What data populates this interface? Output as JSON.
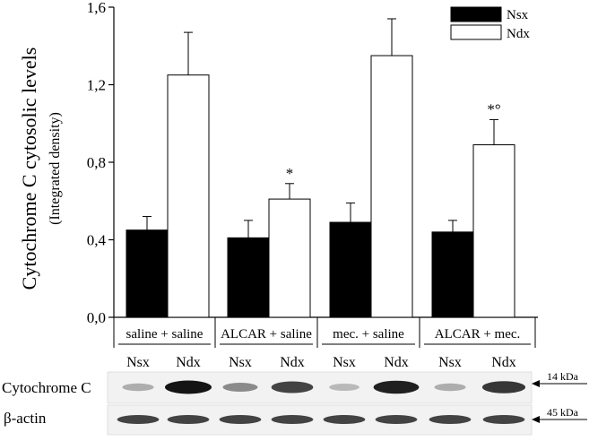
{
  "chart_data": {
    "type": "bar",
    "ylabel": "Cytochrome C cytosolic levels",
    "ylabel_sub": "(Integrated density)",
    "ylim": [
      0,
      1.6
    ],
    "yticks": [
      "0,0",
      "0,4",
      "0,8",
      "1,2",
      "1,6"
    ],
    "ytick_values": [
      0,
      0.4,
      0.8,
      1.2,
      1.6
    ],
    "categories": [
      "saline + saline",
      "ALCAR + saline",
      "mec. + saline",
      "ALCAR + mec."
    ],
    "series": [
      {
        "name": "Nsx",
        "color": "#000000",
        "values": [
          0.45,
          0.41,
          0.49,
          0.44
        ],
        "errors": [
          0.07,
          0.09,
          0.1,
          0.06
        ],
        "annotations": [
          "",
          "",
          "",
          ""
        ]
      },
      {
        "name": "Ndx",
        "color": "#ffffff",
        "values": [
          1.25,
          0.61,
          1.35,
          0.89
        ],
        "errors": [
          0.22,
          0.08,
          0.19,
          0.13
        ],
        "annotations": [
          "",
          "*",
          "",
          "*°"
        ]
      }
    ],
    "legend": {
      "position": "top-right",
      "entries": [
        "Nsx",
        "Ndx"
      ]
    },
    "grid": false
  },
  "blot": {
    "lane_labels": [
      "Nsx",
      "Ndx",
      "Nsx",
      "Ndx",
      "Nsx",
      "Ndx",
      "Nsx",
      "Ndx"
    ],
    "rows": [
      {
        "label": "Cytochrome C",
        "marker": "14 kDa",
        "intensities": [
          0.35,
          1.0,
          0.5,
          0.8,
          0.3,
          0.95,
          0.35,
          0.85
        ]
      },
      {
        "label": "β-actin",
        "marker": "45 kDa",
        "intensities": [
          0.8,
          0.8,
          0.8,
          0.8,
          0.8,
          0.8,
          0.8,
          0.8
        ]
      }
    ]
  }
}
